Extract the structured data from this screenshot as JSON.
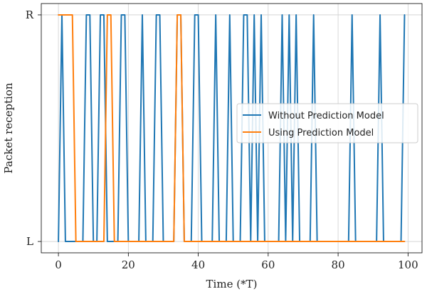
{
  "chart_data": {
    "type": "line",
    "title": "",
    "xlabel": "Time (*T)",
    "ylabel": "Packet reception",
    "xlim": [
      -4.9,
      104
    ],
    "ylim": [
      -0.05,
      1.05
    ],
    "x_ticks": [
      0,
      20,
      40,
      60,
      80,
      100
    ],
    "y_ticks": [
      0,
      1
    ],
    "y_tick_labels": [
      "L",
      "R"
    ],
    "grid": true,
    "legend_position": "center-right",
    "series": [
      {
        "name": "Without Prediction Model",
        "color": "#1f77b4",
        "x": [
          0,
          1,
          2,
          3,
          4,
          5,
          6,
          7,
          8,
          9,
          10,
          11,
          12,
          13,
          14,
          15,
          16,
          17,
          18,
          19,
          20,
          21,
          22,
          23,
          24,
          25,
          26,
          27,
          28,
          29,
          30,
          31,
          32,
          33,
          34,
          35,
          36,
          37,
          38,
          39,
          40,
          41,
          42,
          43,
          44,
          45,
          46,
          47,
          48,
          49,
          50,
          51,
          52,
          53,
          54,
          55,
          56,
          57,
          58,
          59,
          60,
          61,
          62,
          63,
          64,
          65,
          66,
          67,
          68,
          69,
          70,
          71,
          72,
          73,
          74,
          75,
          76,
          77,
          78,
          79,
          80,
          81,
          82,
          83,
          84,
          85,
          86,
          87,
          88,
          89,
          90,
          91,
          92,
          93,
          94,
          95,
          96,
          97,
          98,
          99
        ],
        "y": [
          "L",
          "R",
          "L",
          "L",
          "L",
          "L",
          "L",
          "L",
          "R",
          "R",
          "L",
          "L",
          "R",
          "R",
          "L",
          "L",
          "L",
          "L",
          "R",
          "R",
          "L",
          "L",
          "L",
          "L",
          "R",
          "L",
          "L",
          "L",
          "R",
          "R",
          "L",
          "L",
          "L",
          "L",
          "R",
          "R",
          "L",
          "L",
          "L",
          "R",
          "R",
          "L",
          "L",
          "L",
          "L",
          "R",
          "L",
          "L",
          "L",
          "R",
          "L",
          "L",
          "L",
          "R",
          "R",
          "L",
          "R",
          "L",
          "R",
          "L",
          "L",
          "L",
          "L",
          "L",
          "R",
          "L",
          "R",
          "L",
          "R",
          "L",
          "L",
          "L",
          "L",
          "R",
          "L",
          "L",
          "L",
          "L",
          "L",
          "L",
          "L",
          "L",
          "L",
          "L",
          "R",
          "L",
          "L",
          "L",
          "L",
          "L",
          "L",
          "L",
          "R",
          "L",
          "L",
          "L",
          "L",
          "L",
          "L",
          "R"
        ]
      },
      {
        "name": "Using Prediction Model",
        "color": "#ff7f0e",
        "x": [
          0,
          1,
          2,
          3,
          4,
          5,
          6,
          7,
          8,
          9,
          10,
          11,
          12,
          13,
          14,
          15,
          16,
          17,
          18,
          19,
          20,
          21,
          22,
          23,
          24,
          25,
          26,
          27,
          28,
          29,
          30,
          31,
          32,
          33,
          34,
          35,
          36,
          37,
          38,
          39,
          40,
          41,
          42,
          43,
          44,
          45,
          46,
          47,
          48,
          49,
          50,
          51,
          52,
          53,
          54,
          55,
          56,
          57,
          58,
          59,
          60,
          61,
          62,
          63,
          64,
          65,
          66,
          67,
          68,
          69,
          70,
          71,
          72,
          73,
          74,
          75,
          76,
          77,
          78,
          79,
          80,
          81,
          82,
          83,
          84,
          85,
          86,
          87,
          88,
          89,
          90,
          91,
          92,
          93,
          94,
          95,
          96,
          97,
          98,
          99
        ],
        "y": [
          "R",
          "R",
          "R",
          "R",
          "R",
          "L",
          "L",
          "L",
          "L",
          "L",
          "L",
          "L",
          "L",
          "L",
          "R",
          "R",
          "L",
          "L",
          "L",
          "L",
          "L",
          "L",
          "L",
          "L",
          "L",
          "L",
          "L",
          "L",
          "L",
          "L",
          "L",
          "L",
          "L",
          "L",
          "R",
          "R",
          "L",
          "L",
          "L",
          "L",
          "L",
          "L",
          "L",
          "L",
          "L",
          "L",
          "L",
          "L",
          "L",
          "L",
          "L",
          "L",
          "L",
          "L",
          "L",
          "L",
          "L",
          "L",
          "L",
          "L",
          "L",
          "L",
          "L",
          "L",
          "L",
          "L",
          "L",
          "L",
          "L",
          "L",
          "L",
          "L",
          "L",
          "L",
          "L",
          "L",
          "L",
          "L",
          "L",
          "L",
          "L",
          "L",
          "L",
          "L",
          "L",
          "L",
          "L",
          "L",
          "L",
          "L",
          "L",
          "L",
          "L",
          "L",
          "L",
          "L",
          "L",
          "L",
          "L",
          "L"
        ]
      }
    ]
  }
}
